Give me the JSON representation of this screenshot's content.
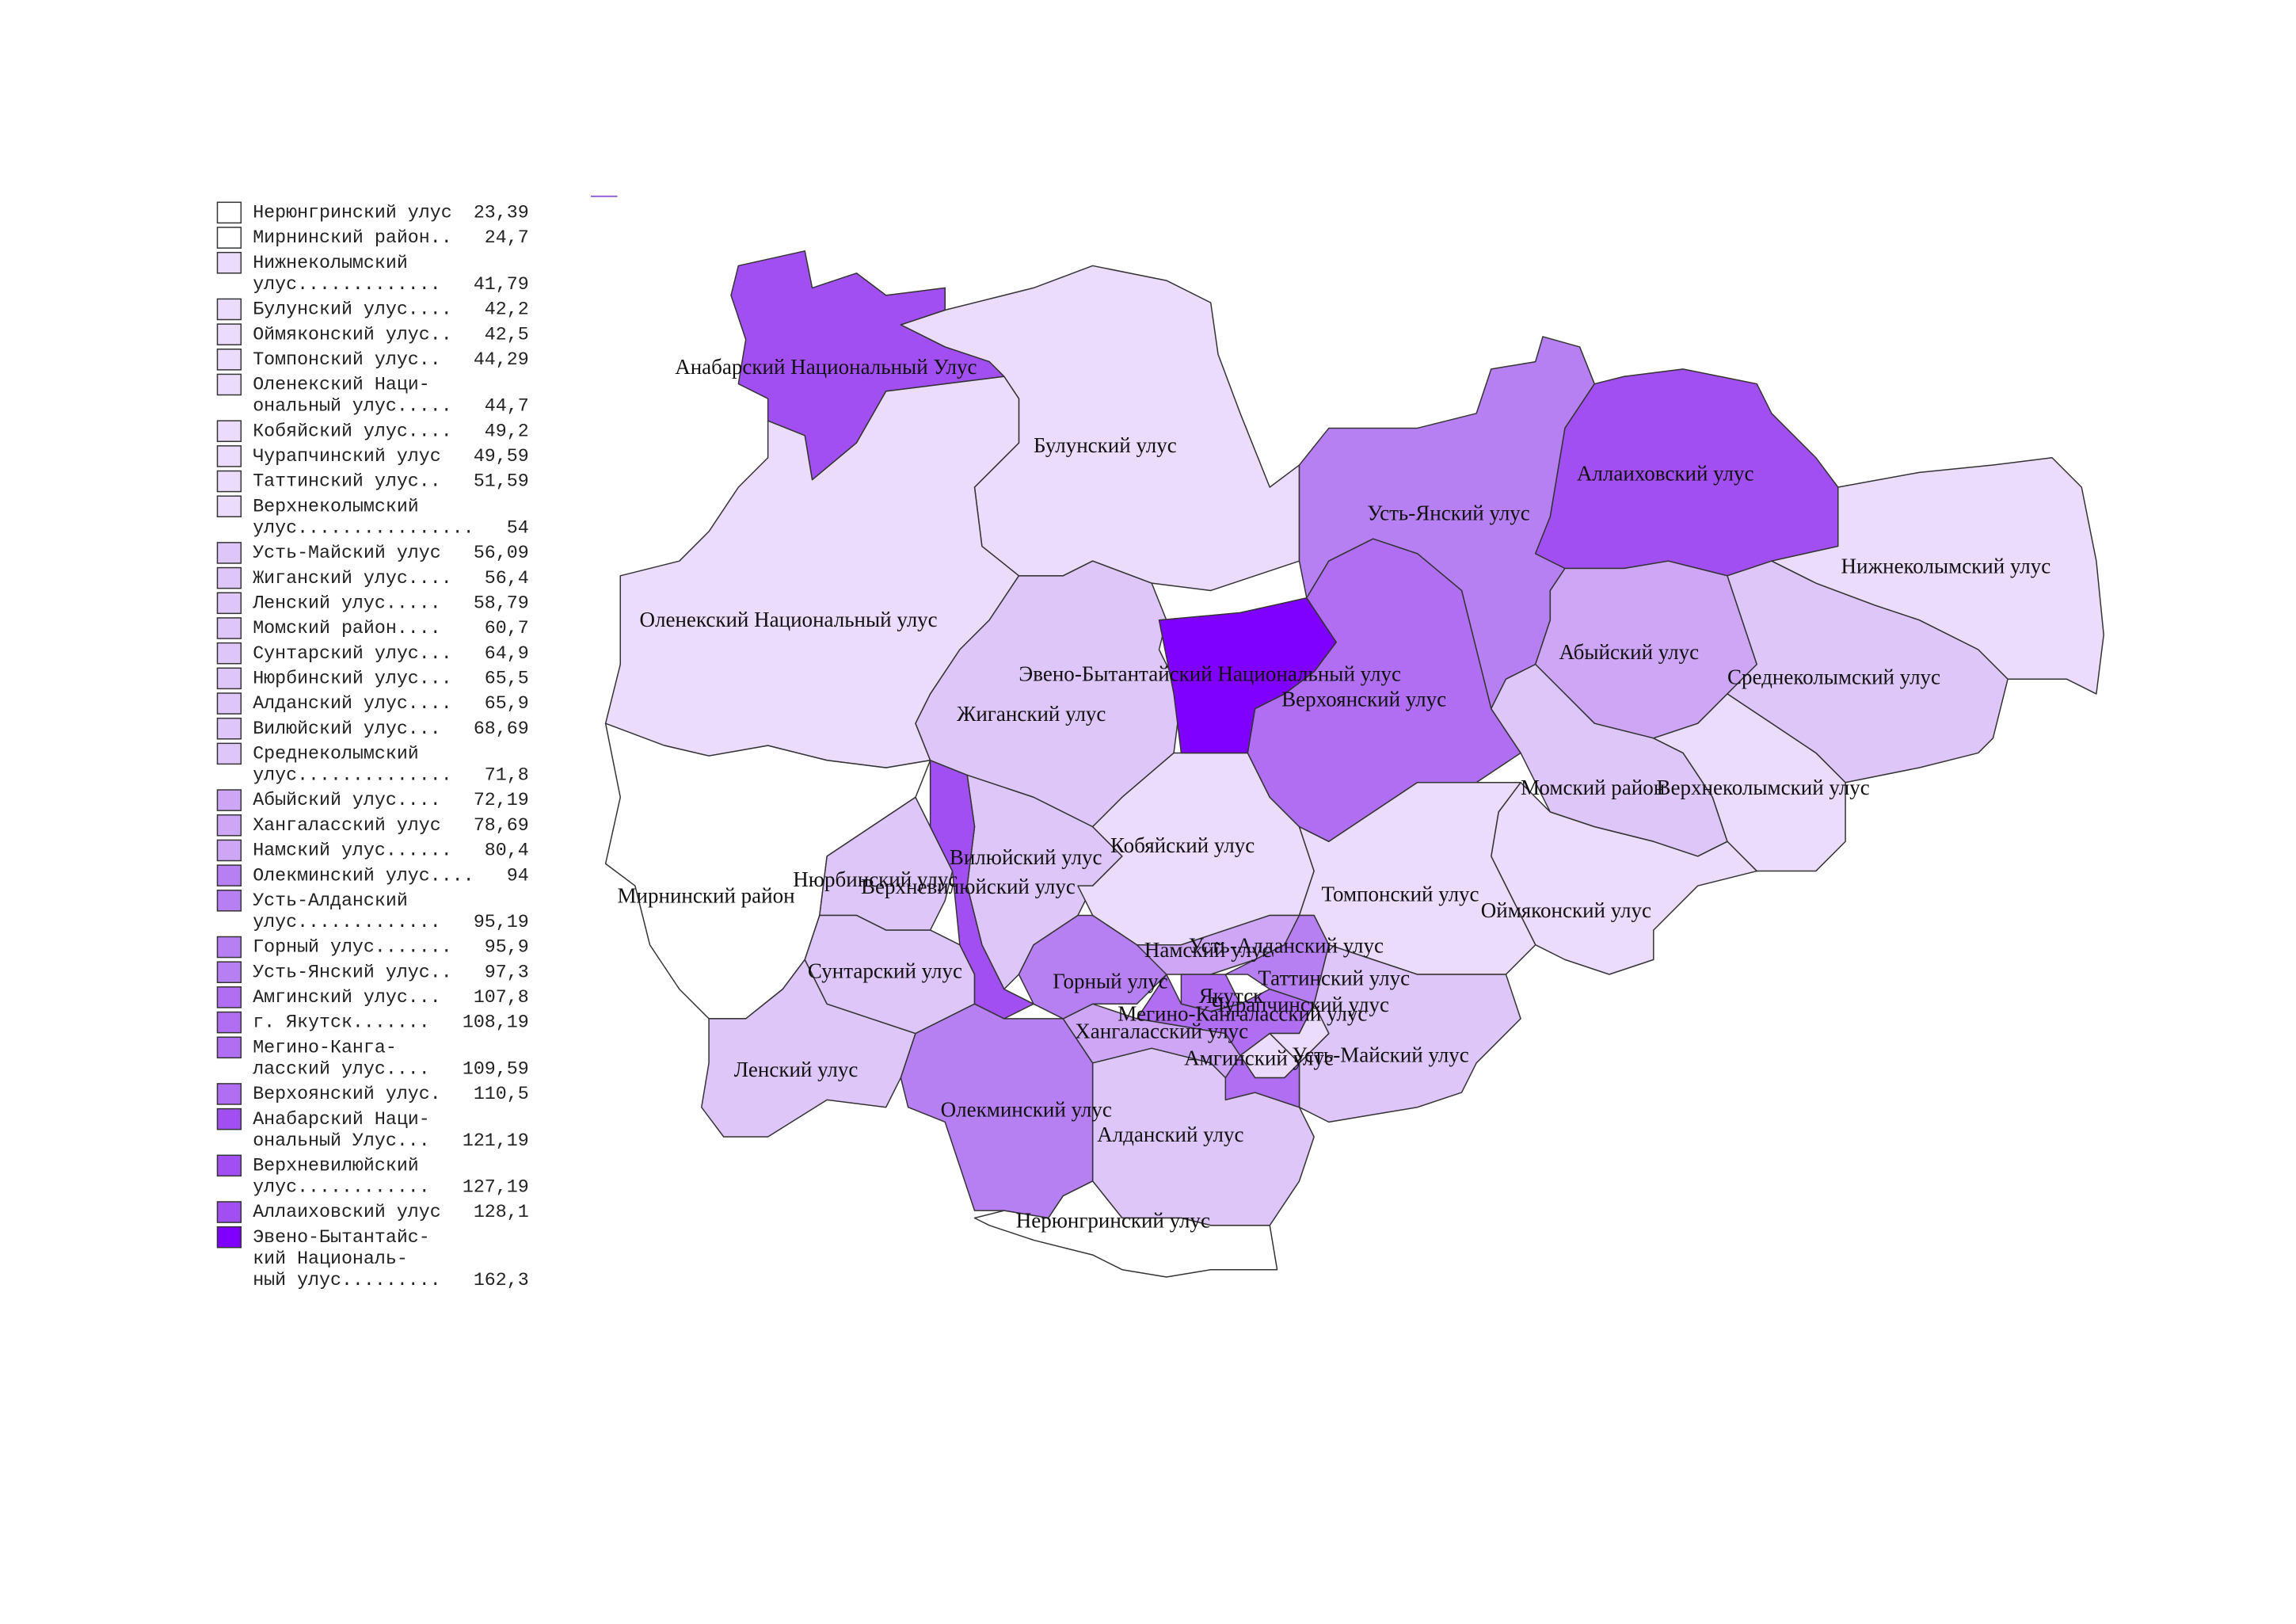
{
  "legend": {
    "items": [
      {
        "lines": [
          "Нерюнгринский улус"
        ],
        "value": 23.39,
        "value_label": "23,39",
        "color": "#ffffff"
      },
      {
        "lines": [
          "Мирнинский район.."
        ],
        "value": 24.7,
        "value_label": "24,7",
        "color": "#ffffff"
      },
      {
        "lines": [
          "Нижнеколымский",
          "улус............."
        ],
        "value": 41.79,
        "value_label": "41,79",
        "color": "#ebdcfb"
      },
      {
        "lines": [
          "Булунский улус...."
        ],
        "value": 42.2,
        "value_label": "42,2",
        "color": "#ebdcfb"
      },
      {
        "lines": [
          "Оймяконский улус.."
        ],
        "value": 42.5,
        "value_label": "42,5",
        "color": "#ebdcfb"
      },
      {
        "lines": [
          "Томпонский улус.."
        ],
        "value": 44.29,
        "value_label": "44,29",
        "color": "#ebdcfb"
      },
      {
        "lines": [
          "Оленекский Наци-",
          "ональный улус....."
        ],
        "value": 44.7,
        "value_label": "44,7",
        "color": "#ebdcfb"
      },
      {
        "lines": [
          "Кобяйский улус...."
        ],
        "value": 49.2,
        "value_label": "49,2",
        "color": "#ebdcfb"
      },
      {
        "lines": [
          "Чурапчинский улус"
        ],
        "value": 49.59,
        "value_label": "49,59",
        "color": "#ebdcfb"
      },
      {
        "lines": [
          "Таттинский улус.."
        ],
        "value": 51.59,
        "value_label": "51,59",
        "color": "#ebdcfb"
      },
      {
        "lines": [
          "Верхнеколымский",
          "улус................"
        ],
        "value": 54,
        "value_label": "54",
        "color": "#ebdcfb"
      },
      {
        "lines": [
          "Усть-Майский улус"
        ],
        "value": 56.09,
        "value_label": "56,09",
        "color": "#dfc6f9"
      },
      {
        "lines": [
          "Жиганский улус...."
        ],
        "value": 56.4,
        "value_label": "56,4",
        "color": "#dfc6f9"
      },
      {
        "lines": [
          "Ленский улус....."
        ],
        "value": 58.79,
        "value_label": "58,79",
        "color": "#dfc6f9"
      },
      {
        "lines": [
          "Момский район...."
        ],
        "value": 60.7,
        "value_label": "60,7",
        "color": "#dfc6f9"
      },
      {
        "lines": [
          "Сунтарский улус..."
        ],
        "value": 64.9,
        "value_label": "64,9",
        "color": "#dfc6f9"
      },
      {
        "lines": [
          "Нюрбинский улус..."
        ],
        "value": 65.5,
        "value_label": "65,5",
        "color": "#dfc6f9"
      },
      {
        "lines": [
          "Алданский улус...."
        ],
        "value": 65.9,
        "value_label": "65,9",
        "color": "#dfc6f9"
      },
      {
        "lines": [
          "Вилюйский улус..."
        ],
        "value": 68.69,
        "value_label": "68,69",
        "color": "#dfc6f9"
      },
      {
        "lines": [
          "Среднеколымский",
          "улус.............."
        ],
        "value": 71.8,
        "value_label": "71,8",
        "color": "#dfc6f9"
      },
      {
        "lines": [
          "Абыйский улус...."
        ],
        "value": 72.19,
        "value_label": "72,19",
        "color": "#cda6f6"
      },
      {
        "lines": [
          "Хангаласский улус"
        ],
        "value": 78.69,
        "value_label": "78,69",
        "color": "#cda6f6"
      },
      {
        "lines": [
          "Намский улус......"
        ],
        "value": 80.4,
        "value_label": "80,4",
        "color": "#cda6f6"
      },
      {
        "lines": [
          "Олекминский улус...."
        ],
        "value": 94,
        "value_label": "94",
        "color": "#b680f3"
      },
      {
        "lines": [
          "Усть-Алданский",
          "улус............."
        ],
        "value": 95.19,
        "value_label": "95,19",
        "color": "#b680f3"
      },
      {
        "lines": [
          "Горный улус......."
        ],
        "value": 95.9,
        "value_label": "95,9",
        "color": "#b680f3"
      },
      {
        "lines": [
          "Усть-Янский улус.."
        ],
        "value": 97.3,
        "value_label": "97,3",
        "color": "#b680f3"
      },
      {
        "lines": [
          "Амгинский улус..."
        ],
        "value": 107.8,
        "value_label": "107,8",
        "color": "#b06ff3"
      },
      {
        "lines": [
          "г. Якутск......."
        ],
        "value": 108.19,
        "value_label": "108,19",
        "color": "#b06ff3"
      },
      {
        "lines": [
          "Мегино-Канга-",
          "ласский улус...."
        ],
        "value": 109.59,
        "value_label": "109,59",
        "color": "#b06ff3"
      },
      {
        "lines": [
          "Верхоянский улус."
        ],
        "value": 110.5,
        "value_label": "110,5",
        "color": "#b06ff3"
      },
      {
        "lines": [
          "Анабарский Наци-",
          "ональный Улус..."
        ],
        "value": 121.19,
        "value_label": "121,19",
        "color": "#a24ff2"
      },
      {
        "lines": [
          "Верхневилюйский",
          "улус............"
        ],
        "value": 127.19,
        "value_label": "127,19",
        "color": "#a24ff2"
      },
      {
        "lines": [
          "Аллаиховский улус"
        ],
        "value": 128.1,
        "value_label": "128,1",
        "color": "#a24ff2"
      },
      {
        "lines": [
          "Эвено-Бытантайс-",
          "кий Националь-",
          "ный улус........."
        ],
        "value": 162.3,
        "value_label": "162,3",
        "color": "#8000ff"
      }
    ]
  },
  "map": {
    "labels": [
      "Анабарский Национальный Улус",
      "Булунский улус",
      "Аллаиховский улус",
      "Усть-Янский улус",
      "Нижнеколымский улус",
      "Оленекский Национальный улус",
      "Абыйский улус",
      "Эвено-Бытантайский Национальный улус",
      "Среднеколымский улус",
      "Верхоянский улус",
      "Жиганский улус",
      "Момский район",
      "Верхнеколымский улус",
      "Кобяйский улус",
      "Вилюйский улус",
      "Нюрбинский улус",
      "Верхневилюйский улус",
      "Мирнинский район",
      "Томпонский улус",
      "Оймяконский улус",
      "Усть-Алданский улус",
      "Намский улус",
      "Сунтарский улус",
      "Горный улус",
      "Таттинский улус",
      "Якутск",
      "Чурапчинский улус",
      "Мегино-Кангаласский улус",
      "Хангаласский улус",
      "Амгинский улус",
      "Усть-Майский улус",
      "Ленский улус",
      "Олекминский улус",
      "Алданский улус",
      "Нерюнгринский улус"
    ]
  }
}
